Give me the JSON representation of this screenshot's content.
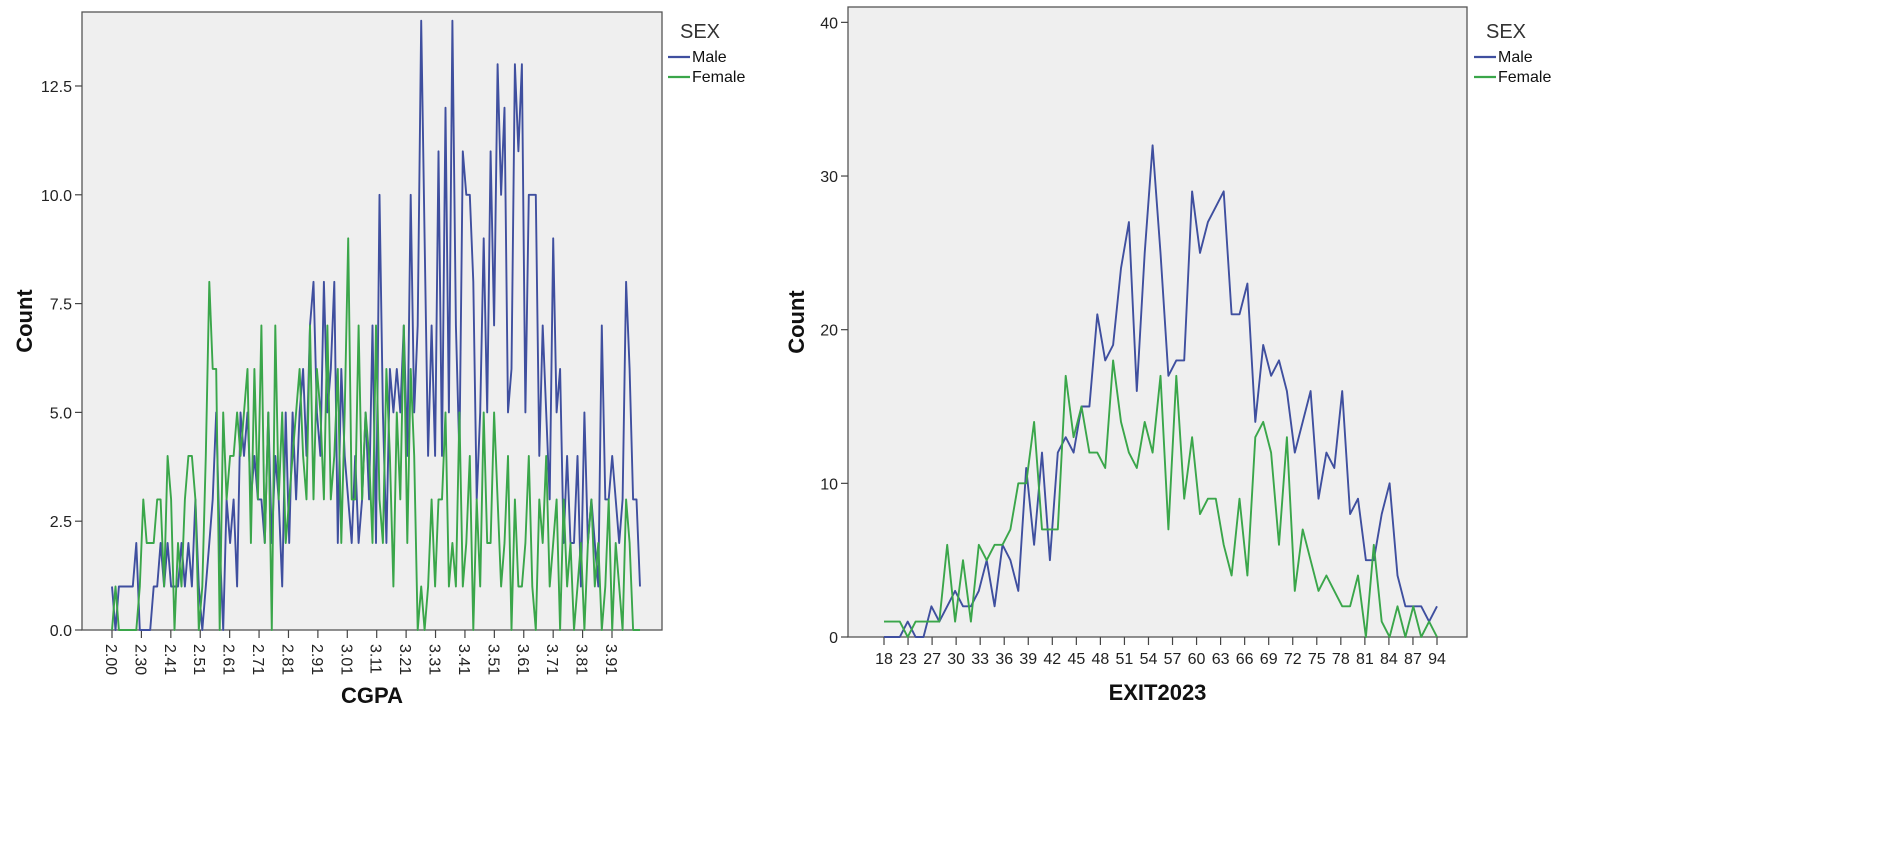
{
  "colors": {
    "male": "#3f4f9f",
    "female": "#3aa64a",
    "plot_bg": "#efefef",
    "frame": "#555555"
  },
  "chart_data": [
    {
      "type": "line",
      "xlabel": "CGPA",
      "ylabel": "Count",
      "ylim": [
        0,
        14.2
      ],
      "yticks": [
        "0.0",
        "2.5",
        "5.0",
        "7.5",
        "10.0",
        "12.5"
      ],
      "xtick_labels": [
        "2.00",
        "2.30",
        "2.41",
        "2.51",
        "2.61",
        "2.71",
        "2.81",
        "2.91",
        "3.01",
        "3.11",
        "3.21",
        "3.31",
        "3.41",
        "3.51",
        "3.61",
        "3.71",
        "3.81",
        "3.91"
      ],
      "grid": false,
      "legend": {
        "title": "SEX",
        "position": "top-right",
        "entries": [
          "Male",
          "Female"
        ]
      },
      "series": [
        {
          "name": "Male",
          "values": [
            1,
            0,
            1,
            1,
            1,
            1,
            1,
            2,
            0,
            0,
            0,
            0,
            1,
            1,
            2,
            1,
            2,
            1,
            1,
            1,
            2,
            1,
            2,
            1,
            3,
            1,
            0,
            1,
            2,
            3,
            5,
            2,
            0,
            3,
            2,
            3,
            1,
            5,
            4,
            5,
            3,
            4,
            3,
            3,
            2,
            5,
            2,
            4,
            3,
            1,
            5,
            2,
            5,
            3,
            5,
            6,
            4,
            7,
            8,
            5,
            4,
            8,
            5,
            6,
            8,
            2,
            6,
            4,
            3,
            2,
            4,
            2,
            3,
            5,
            3,
            7,
            2,
            10,
            5,
            2,
            6,
            5,
            6,
            5,
            7,
            4,
            10,
            5,
            7,
            14,
            9,
            4,
            7,
            4,
            11,
            4,
            12,
            5,
            14,
            7,
            4,
            11,
            10,
            10,
            8,
            3,
            5,
            9,
            5,
            11,
            7,
            13,
            10,
            12,
            5,
            6,
            13,
            11,
            13,
            5,
            10,
            10,
            10,
            4,
            7,
            5,
            3,
            9,
            5,
            6,
            2,
            4,
            2,
            2,
            4,
            1,
            5,
            2,
            3,
            2,
            1,
            7,
            3,
            3,
            4,
            3,
            2,
            3,
            8,
            6,
            3,
            3,
            1
          ]
        },
        {
          "name": "Female",
          "values": [
            0,
            1,
            0,
            0,
            0,
            0,
            0,
            0,
            1,
            3,
            2,
            2,
            2,
            3,
            3,
            1,
            4,
            3,
            0,
            2,
            1,
            3,
            4,
            4,
            3,
            0,
            1,
            4,
            8,
            6,
            6,
            0,
            5,
            3,
            4,
            4,
            5,
            4,
            5,
            6,
            2,
            6,
            3,
            7,
            2,
            5,
            0,
            7,
            3,
            5,
            2,
            3,
            4,
            5,
            6,
            4,
            3,
            7,
            3,
            6,
            5,
            3,
            7,
            3,
            4,
            6,
            2,
            5,
            9,
            3,
            3,
            7,
            3,
            5,
            4,
            2,
            7,
            3,
            2,
            6,
            4,
            1,
            5,
            3,
            7,
            2,
            6,
            4,
            0,
            1,
            0,
            1,
            3,
            1,
            3,
            3,
            5,
            1,
            2,
            1,
            5,
            1,
            2,
            4,
            0,
            3,
            1,
            5,
            2,
            2,
            5,
            3,
            1,
            2,
            4,
            0,
            3,
            1,
            1,
            2,
            4,
            1,
            0,
            3,
            2,
            4,
            1,
            2,
            3,
            0,
            3,
            1,
            2,
            0,
            1,
            2,
            0,
            2,
            3,
            1,
            2,
            0,
            1,
            3,
            0,
            2,
            1,
            0,
            3,
            2,
            0,
            0,
            0
          ]
        }
      ]
    },
    {
      "type": "line",
      "xlabel": "EXIT2023",
      "ylabel": "Count",
      "ylim": [
        0,
        41
      ],
      "yticks": [
        "0",
        "10",
        "20",
        "30",
        "40"
      ],
      "xtick_labels": [
        "18",
        "23",
        "27",
        "30",
        "33",
        "36",
        "39",
        "42",
        "45",
        "48",
        "51",
        "54",
        "57",
        "60",
        "63",
        "66",
        "69",
        "72",
        "75",
        "78",
        "81",
        "84",
        "87",
        "94"
      ],
      "grid": false,
      "legend": {
        "title": "SEX",
        "position": "top-right",
        "entries": [
          "Male",
          "Female"
        ]
      },
      "series": [
        {
          "name": "Male",
          "values": [
            0,
            0,
            0,
            1,
            0,
            0,
            2,
            1,
            2,
            3,
            2,
            2,
            3,
            5,
            2,
            6,
            5,
            3,
            11,
            6,
            12,
            5,
            12,
            13,
            12,
            15,
            15,
            21,
            18,
            19,
            24,
            27,
            16,
            25,
            32,
            25,
            17,
            18,
            18,
            29,
            25,
            27,
            28,
            29,
            21,
            21,
            23,
            14,
            19,
            17,
            18,
            16,
            12,
            14,
            16,
            9,
            12,
            11,
            16,
            8,
            9,
            5,
            5,
            8,
            10,
            4,
            2,
            2,
            2,
            1,
            2
          ]
        },
        {
          "name": "Female",
          "values": [
            1,
            1,
            1,
            0,
            1,
            1,
            1,
            1,
            6,
            1,
            5,
            1,
            6,
            5,
            6,
            6,
            7,
            10,
            10,
            14,
            7,
            7,
            7,
            17,
            13,
            15,
            12,
            12,
            11,
            18,
            14,
            12,
            11,
            14,
            12,
            17,
            7,
            17,
            9,
            13,
            8,
            9,
            9,
            6,
            4,
            9,
            4,
            13,
            14,
            12,
            6,
            13,
            3,
            7,
            5,
            3,
            4,
            3,
            2,
            2,
            4,
            0,
            6,
            1,
            0,
            2,
            0,
            2,
            0,
            1,
            0
          ]
        }
      ]
    }
  ]
}
